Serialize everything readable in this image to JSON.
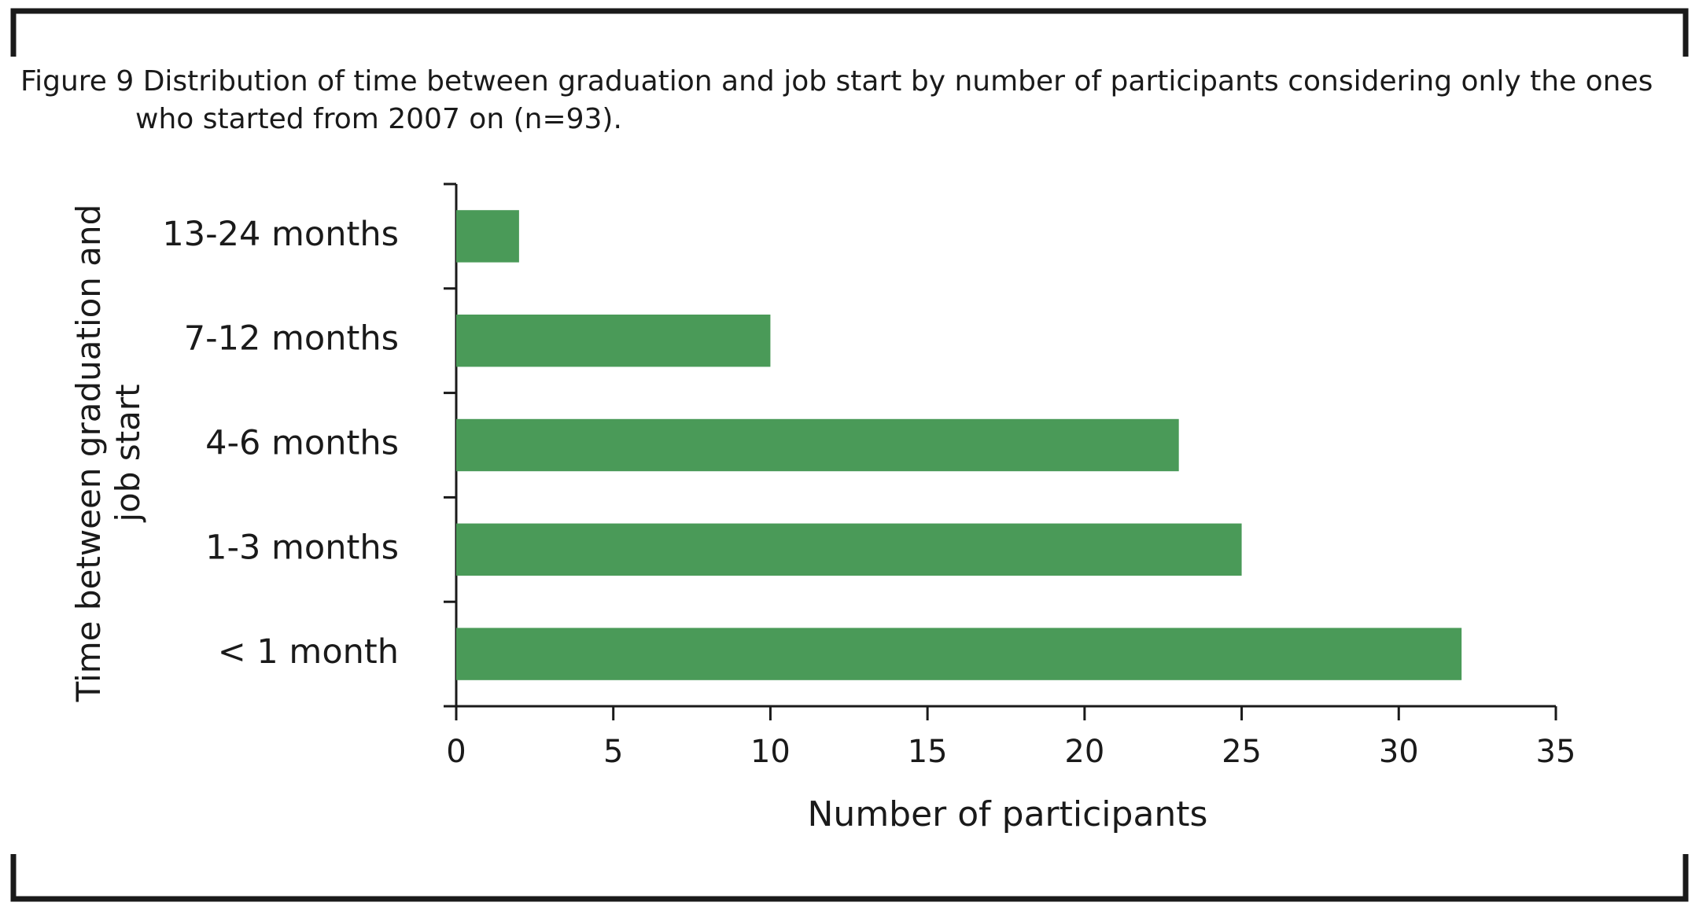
{
  "chart_data": {
    "type": "bar",
    "orientation": "horizontal",
    "title": "Figure 9 Distribution of time between graduation and job start by number of participants considering only the ones who started from 2007 on (n=93).",
    "x_label": "Number of participants",
    "y_label": "Time between graduation and job start",
    "categories": [
      "13-24 months",
      "7-12 months",
      "4-6 months",
      "1-3 months",
      "< 1 month"
    ],
    "values": [
      2,
      10,
      23,
      25,
      32
    ],
    "color": "#4a9a58",
    "xlim": [
      0,
      35
    ],
    "xticks": [
      0,
      5,
      10,
      15,
      20,
      25,
      30,
      35
    ],
    "grid": false
  }
}
